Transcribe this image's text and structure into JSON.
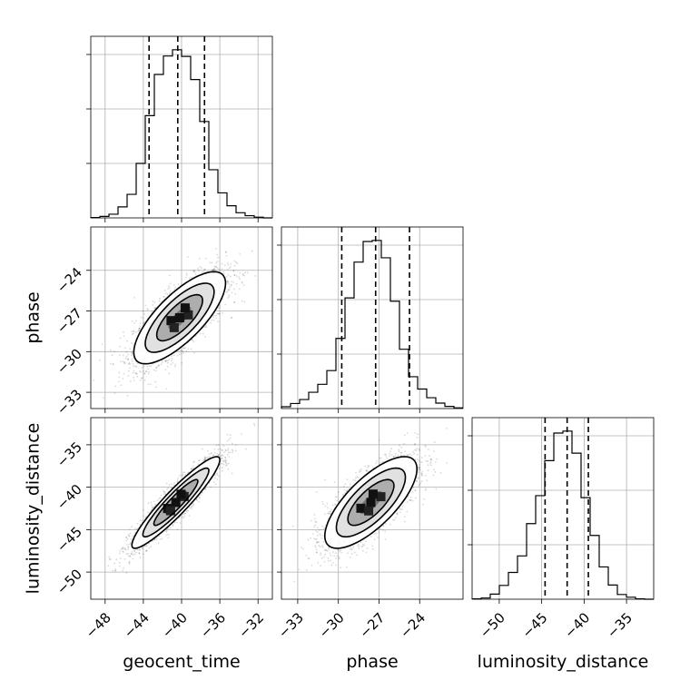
{
  "chart_data": {
    "type": "corner",
    "parameters": [
      "geocent_time",
      "phase",
      "luminosity_distance"
    ],
    "grid": true,
    "ranges": {
      "geocent_time": [
        -49.5,
        -30.5
      ],
      "phase": [
        -34.2,
        -20.8
      ],
      "luminosity_distance": [
        -53.2,
        -31.8
      ]
    },
    "ticks": {
      "geocent_time": [
        -48,
        -44,
        -40,
        -36,
        -32
      ],
      "phase": [
        -33,
        -30,
        -27,
        -24
      ],
      "luminosity_distance": [
        -50,
        -45,
        -40,
        -35
      ]
    },
    "tick_labels": {
      "geocent_time": [
        "−48",
        "−44",
        "−40",
        "−36",
        "−32"
      ],
      "phase": [
        "−33",
        "−30",
        "−27",
        "−24"
      ],
      "luminosity_distance": [
        "−50",
        "−45",
        "−40",
        "−35"
      ]
    },
    "marginals": [
      {
        "parameter": "geocent_time",
        "bin_edges": [
          -49.5,
          -48.55,
          -47.6,
          -46.65,
          -45.7,
          -44.75,
          -43.8,
          -42.85,
          -41.9,
          -40.95,
          -40.0,
          -39.05,
          -38.1,
          -37.15,
          -36.2,
          -35.25,
          -34.3,
          -33.35,
          -32.4,
          -31.45,
          -30.5
        ],
        "counts": [
          1,
          4,
          10,
          30,
          64,
          148,
          278,
          390,
          440,
          457,
          439,
          376,
          262,
          131,
          68,
          33,
          14,
          6,
          2,
          0
        ],
        "quantiles": [
          -43.4,
          -40.4,
          -37.6
        ]
      },
      {
        "parameter": "phase",
        "bin_edges": [
          -34.2,
          -33.53,
          -32.86,
          -32.19,
          -31.52,
          -30.85,
          -30.18,
          -29.51,
          -28.84,
          -28.17,
          -27.5,
          -26.83,
          -26.16,
          -25.49,
          -24.82,
          -24.15,
          -23.48,
          -22.81,
          -22.14,
          -21.47,
          -20.8
        ],
        "counts": [
          5,
          14,
          25,
          45,
          67,
          105,
          194,
          306,
          405,
          462,
          465,
          417,
          297,
          164,
          88,
          54,
          30,
          15,
          6,
          2
        ],
        "quantiles": [
          -29.75,
          -27.25,
          -24.75
        ]
      },
      {
        "parameter": "luminosity_distance",
        "bin_edges": [
          -53.2,
          -52.13,
          -51.06,
          -49.99,
          -48.92,
          -47.85,
          -46.78,
          -45.71,
          -44.64,
          -43.57,
          -42.5,
          -41.43,
          -40.36,
          -39.29,
          -38.22,
          -37.15,
          -36.08,
          -35.01,
          -33.94,
          -32.87,
          -31.8
        ],
        "counts": [
          1,
          3,
          13,
          35,
          68,
          110,
          192,
          263,
          352,
          422,
          427,
          371,
          258,
          162,
          82,
          36,
          12,
          5,
          1,
          0
        ],
        "quantiles": [
          -44.6,
          -42.0,
          -39.5
        ]
      }
    ],
    "joint_pairs": [
      {
        "x": "geocent_time",
        "y": "phase",
        "center": [
          -40.2,
          -27.5
        ],
        "std": [
          2.4,
          1.7
        ],
        "correlation": 0.75,
        "contour_levels_sigma": [
          0.5,
          1.0,
          1.5,
          2.0
        ],
        "n_samples": 2600
      },
      {
        "x": "geocent_time",
        "y": "luminosity_distance",
        "center": [
          -40.6,
          -41.8
        ],
        "std": [
          2.3,
          2.7
        ],
        "correlation": 0.93,
        "contour_levels_sigma": [
          0.5,
          1.0,
          1.5,
          2.0
        ],
        "n_samples": 2600
      },
      {
        "x": "phase",
        "y": "luminosity_distance",
        "center": [
          -27.6,
          -41.8
        ],
        "std": [
          1.7,
          2.7
        ],
        "correlation": 0.73,
        "contour_levels_sigma": [
          0.5,
          1.0,
          1.5,
          2.0
        ],
        "n_samples": 2600
      }
    ]
  }
}
